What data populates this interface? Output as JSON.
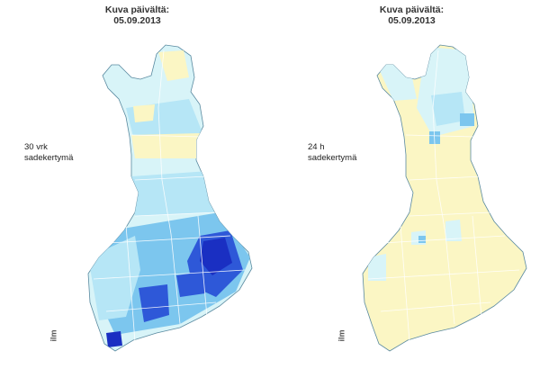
{
  "left_panel": {
    "title_line1": "Kuva päivältä:",
    "title_line2": "05.09.2013",
    "caption_line1": "30 vrk",
    "caption_line2": "sadekertymä"
  },
  "right_panel": {
    "title_line1": "Kuva päivältä:",
    "title_line2": "05.09.2013",
    "caption_line1": "24 h",
    "caption_line2": "sadekertymä"
  },
  "colors": {
    "very_dry": "#fbf6c4",
    "light": "#d8f4f8",
    "medium": "#b6e6f6",
    "blue": "#7cc6ee",
    "dark": "#2e58d8",
    "deep": "#1a2fc2",
    "border": "#ffffff"
  },
  "logo_text": "ilm"
}
